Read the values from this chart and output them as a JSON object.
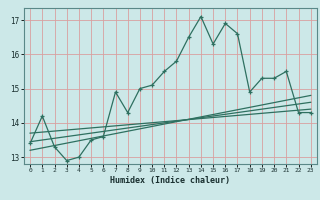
{
  "xlabel": "Humidex (Indice chaleur)",
  "background_color": "#cce8e8",
  "grid_color": "#d9a0a0",
  "line_color": "#2e7060",
  "xlim": [
    -0.5,
    23.5
  ],
  "ylim": [
    12.8,
    17.35
  ],
  "yticks": [
    13,
    14,
    15,
    16,
    17
  ],
  "xticks": [
    0,
    1,
    2,
    3,
    4,
    5,
    6,
    7,
    8,
    9,
    10,
    11,
    12,
    13,
    14,
    15,
    16,
    17,
    18,
    19,
    20,
    21,
    22,
    23
  ],
  "main_line_x": [
    0,
    1,
    2,
    3,
    4,
    5,
    6,
    7,
    8,
    9,
    10,
    11,
    12,
    13,
    14,
    15,
    16,
    17,
    18,
    19,
    20,
    21,
    22,
    23
  ],
  "main_line_y": [
    13.4,
    14.2,
    13.3,
    12.9,
    13.0,
    13.5,
    13.6,
    14.9,
    14.3,
    15.0,
    15.1,
    15.5,
    15.8,
    16.5,
    17.1,
    16.3,
    16.9,
    16.6,
    14.9,
    15.3,
    15.3,
    15.5,
    14.3,
    14.3
  ],
  "trend_lines": [
    {
      "x": [
        0,
        23
      ],
      "y": [
        13.7,
        14.4
      ]
    },
    {
      "x": [
        0,
        23
      ],
      "y": [
        13.45,
        14.6
      ]
    },
    {
      "x": [
        0,
        23
      ],
      "y": [
        13.2,
        14.8
      ]
    }
  ]
}
